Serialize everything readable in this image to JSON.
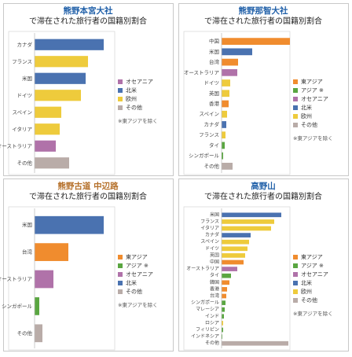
{
  "chart_data": [
    {
      "type": "bar",
      "title": "熊野本宮大社",
      "title_color": "#1f5fa8",
      "subtitle": "で滞在された旅行者の国籍別割合",
      "note": "※東アジアを除く",
      "categories": [
        "カナダ",
        "フランス",
        "米国",
        "ドイツ",
        "スペイン",
        "イタリア",
        "オーストラリア",
        "その他"
      ],
      "series": [
        {
          "name": "オセアニア",
          "color": "#b072a9",
          "values": [
            null,
            null,
            null,
            null,
            null,
            null,
            27,
            null
          ]
        },
        {
          "name": "北米",
          "color": "#4a72b0",
          "values": [
            88,
            null,
            65,
            null,
            null,
            null,
            null,
            null
          ]
        },
        {
          "name": "欧州",
          "color": "#eecb3c",
          "values": [
            null,
            68,
            null,
            59,
            34,
            32,
            null,
            null
          ]
        },
        {
          "name": "その他",
          "color": "#b9aca8",
          "values": [
            null,
            null,
            null,
            null,
            null,
            null,
            null,
            44
          ]
        }
      ]
    },
    {
      "type": "bar",
      "title": "熊野那智大社",
      "title_color": "#1f5fa8",
      "subtitle": "で滞在された旅行者の国籍別割合",
      "note": "※東アジアを除く",
      "categories": [
        "中国",
        "米国",
        "台湾",
        "オーストラリア",
        "ドイツ",
        "英国",
        "香港",
        "スペイン",
        "カナダ",
        "フランス",
        "タイ",
        "シンガポール",
        "その他"
      ],
      "series": [
        {
          "name": "東アジア",
          "color": "#f08c2e",
          "values": [
            87,
            null,
            21,
            null,
            null,
            null,
            9,
            null,
            null,
            null,
            null,
            null,
            null
          ]
        },
        {
          "name": "アジア ※",
          "color": "#5aa641",
          "values": [
            null,
            null,
            null,
            null,
            null,
            null,
            null,
            null,
            null,
            null,
            4,
            2,
            null
          ]
        },
        {
          "name": "オセアニア",
          "color": "#b072a9",
          "values": [
            null,
            null,
            null,
            20,
            null,
            null,
            null,
            null,
            null,
            null,
            null,
            null,
            null
          ]
        },
        {
          "name": "北米",
          "color": "#4a72b0",
          "values": [
            null,
            39,
            null,
            null,
            null,
            null,
            null,
            null,
            6,
            null,
            null,
            null,
            null
          ]
        },
        {
          "name": "欧州",
          "color": "#eecb3c",
          "values": [
            null,
            null,
            null,
            null,
            11,
            10,
            null,
            7,
            null,
            5,
            null,
            null,
            null
          ]
        },
        {
          "name": "その他",
          "color": "#b9aca8",
          "values": [
            null,
            null,
            null,
            null,
            null,
            null,
            null,
            null,
            null,
            null,
            null,
            null,
            14
          ]
        }
      ]
    },
    {
      "type": "bar",
      "title": "熊野古道 中辺路",
      "title_color": "#b5702a",
      "subtitle": "で滞在された旅行者の国籍別割合",
      "note": "※東アジアを除く",
      "categories": [
        "米国",
        "台湾",
        "オーストラリア",
        "シンガポール",
        "その他"
      ],
      "series": [
        {
          "name": "東アジア",
          "color": "#f08c2e",
          "values": [
            null,
            43,
            null,
            null,
            null
          ]
        },
        {
          "name": "アジア ※",
          "color": "#5aa641",
          "values": [
            null,
            null,
            null,
            6,
            null
          ]
        },
        {
          "name": "オセアニア",
          "color": "#b072a9",
          "values": [
            null,
            null,
            24,
            null,
            null
          ]
        },
        {
          "name": "北米",
          "color": "#4a72b0",
          "values": [
            88,
            null,
            null,
            null,
            null
          ]
        },
        {
          "name": "その他",
          "color": "#b9aca8",
          "values": [
            null,
            null,
            null,
            null,
            10
          ]
        }
      ]
    },
    {
      "type": "bar",
      "title": "高野山",
      "title_color": "#1f5fa8",
      "subtitle": "で滞在された旅行者の国籍別割合",
      "note": "※東アジアを除く",
      "categories": [
        "米国",
        "フランス",
        "イタリア",
        "カナダ",
        "スペイン",
        "ドイツ",
        "英国",
        "中国",
        "オーストラリア",
        "タイ",
        "韓国",
        "香港",
        "台湾",
        "シンガポール",
        "マレーシア",
        "インド",
        "ロシア",
        "フィリピン",
        "インドネシア",
        "その他"
      ],
      "series": [
        {
          "name": "東アジア",
          "color": "#f08c2e",
          "values": [
            null,
            null,
            null,
            null,
            null,
            null,
            null,
            28,
            null,
            null,
            10,
            7,
            6,
            null,
            null,
            null,
            null,
            null,
            null,
            null
          ]
        },
        {
          "name": "アジア ※",
          "color": "#5aa641",
          "values": [
            null,
            null,
            null,
            null,
            null,
            null,
            null,
            null,
            null,
            12,
            null,
            null,
            null,
            5,
            4,
            3,
            null,
            2,
            1,
            null
          ]
        },
        {
          "name": "オセアニア",
          "color": "#b072a9",
          "values": [
            null,
            null,
            null,
            null,
            null,
            null,
            null,
            null,
            20,
            null,
            null,
            null,
            null,
            null,
            null,
            null,
            null,
            null,
            null,
            null
          ]
        },
        {
          "name": "北米",
          "color": "#4a72b0",
          "values": [
            76,
            null,
            null,
            37,
            null,
            null,
            null,
            null,
            null,
            null,
            null,
            null,
            null,
            null,
            null,
            null,
            null,
            null,
            null,
            null
          ]
        },
        {
          "name": "欧州",
          "color": "#eecb3c",
          "values": [
            null,
            67,
            63,
            null,
            35,
            33,
            30,
            null,
            null,
            null,
            null,
            null,
            null,
            null,
            null,
            null,
            2,
            null,
            null,
            null
          ]
        },
        {
          "name": "その他",
          "color": "#b9aca8",
          "values": [
            null,
            null,
            null,
            null,
            null,
            null,
            null,
            null,
            null,
            null,
            null,
            null,
            null,
            null,
            null,
            null,
            null,
            null,
            null,
            85
          ]
        }
      ]
    }
  ]
}
